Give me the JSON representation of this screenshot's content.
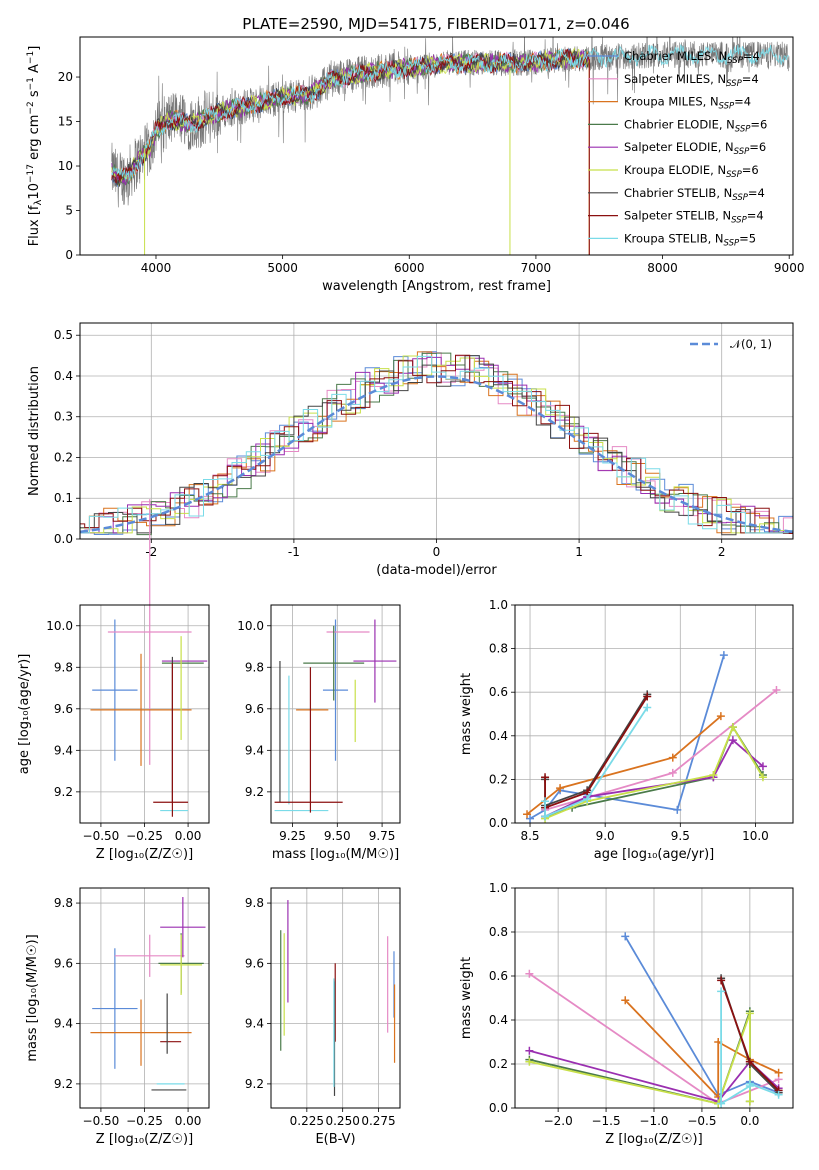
{
  "title": "PLATE=2590, MJD=54175, FIBERID=0171, z=0.046",
  "colors": {
    "Chabrier MILES": "#5b8bd8",
    "Salpeter MILES": "#e58ac5",
    "Kroupa MILES": "#d9731f",
    "Chabrier ELODIE": "#4a7a4a",
    "Salpeter ELODIE": "#9a2fb0",
    "Kroupa ELODIE": "#c8e04a",
    "Chabrier STELIB": "#444444",
    "Salpeter STELIB": "#8b1010",
    "Kroupa STELIB": "#7adbe8"
  },
  "legend": [
    {
      "name": "Chabrier MILES",
      "nssp": "4"
    },
    {
      "name": "Salpeter MILES",
      "nssp": "4"
    },
    {
      "name": "Kroupa MILES",
      "nssp": "4"
    },
    {
      "name": "Chabrier ELODIE",
      "nssp": "6"
    },
    {
      "name": "Salpeter ELODIE",
      "nssp": "6"
    },
    {
      "name": "Kroupa ELODIE",
      "nssp": "6"
    },
    {
      "name": "Chabrier STELIB",
      "nssp": "4"
    },
    {
      "name": "Salpeter STELIB",
      "nssp": "4"
    },
    {
      "name": "Kroupa STELIB",
      "nssp": "5"
    }
  ],
  "chart_data": [
    {
      "id": "spectrum",
      "type": "line",
      "xlabel": "wavelength [Angstrom, rest frame]",
      "ylabel_parts": [
        "Flux [f",
        "λ",
        "10",
        "−17",
        " erg cm",
        "−2",
        " s",
        "−1",
        " A",
        "−1",
        "]"
      ],
      "xlim": [
        3400,
        9030
      ],
      "ylim": [
        0,
        24.5
      ],
      "xticks": [
        4000,
        5000,
        6000,
        7000,
        8000,
        9000
      ],
      "yticks": [
        0,
        5,
        10,
        15,
        20
      ],
      "data_range": [
        3650,
        9000
      ],
      "continuum": [
        [
          3650,
          9.5
        ],
        [
          3700,
          8.5
        ],
        [
          3780,
          9.0
        ],
        [
          3850,
          10.5
        ],
        [
          3950,
          12.0
        ],
        [
          4000,
          14.0
        ],
        [
          4100,
          15.2
        ],
        [
          4300,
          14.8
        ],
        [
          4500,
          16.0
        ],
        [
          4800,
          17.0
        ],
        [
          5000,
          17.8
        ],
        [
          5200,
          18.0
        ],
        [
          5400,
          19.8
        ],
        [
          5700,
          20.6
        ],
        [
          6000,
          21.0
        ],
        [
          6300,
          21.5
        ],
        [
          6600,
          21.6
        ],
        [
          6900,
          21.6
        ],
        [
          7200,
          22.0
        ],
        [
          7500,
          22.2
        ],
        [
          8000,
          22.5
        ],
        [
          8500,
          22.5
        ],
        [
          9000,
          22.5
        ]
      ],
      "models_end": 7420
    },
    {
      "id": "residuals",
      "type": "histogram",
      "xlabel": "(data-model)/error",
      "ylabel": "Normed distribution",
      "xlim": [
        -2.5,
        2.5
      ],
      "ylim": [
        0,
        0.53
      ],
      "xticks": [
        -2,
        -1,
        0,
        1,
        2
      ],
      "yticks": [
        0.0,
        0.1,
        0.2,
        0.3,
        0.4,
        0.5
      ],
      "gauss_label": "𝒩(0, 1)",
      "gauss_color": "#5b8bd8",
      "bin_width": 0.1
    },
    {
      "id": "age-vs-Z",
      "type": "errorbar",
      "xlabel": "Z [log₁₀(Z/Z☉)]",
      "ylabel": "age  [log₁₀(age/yr)]",
      "xlim": [
        -0.62,
        0.12
      ],
      "ylim": [
        9.05,
        10.1
      ],
      "xticks": [
        -0.5,
        -0.25,
        0.0
      ],
      "xticklabels": [
        "−0.50",
        "−0.25",
        "0.00"
      ],
      "yticks": [
        9.2,
        9.4,
        9.6,
        9.8,
        10.0
      ],
      "points": [
        {
          "c": "Chabrier MILES",
          "x": -0.42,
          "xe": 0.13,
          "y": 9.69,
          "ye": 0.34
        },
        {
          "c": "Salpeter MILES",
          "x": -0.22,
          "xe": 0.24,
          "y": 9.97,
          "ye": 0.64
        },
        {
          "c": "Kroupa MILES",
          "x": -0.27,
          "xe": 0.29,
          "y": 9.595,
          "ye": 0.27
        },
        {
          "c": "Salpeter ELODIE",
          "x": -0.02,
          "xe": 0.13,
          "y": 9.83,
          "ye": 0.0
        },
        {
          "c": "Chabrier ELODIE",
          "x": -0.03,
          "xe": 0.12,
          "y": 9.82,
          "ye": 0.0
        },
        {
          "c": "Kroupa ELODIE",
          "x": -0.04,
          "xe": 0.0,
          "y": 9.7,
          "ye": 0.25
        },
        {
          "c": "Chabrier STELIB",
          "x": -0.09,
          "xe": 0.0,
          "y": 9.5,
          "ye": 0.35
        },
        {
          "c": "Salpeter STELIB",
          "x": -0.1,
          "xe": 0.1,
          "y": 9.15,
          "ye": 0.0
        },
        {
          "c": "Kroupa STELIB",
          "x": -0.08,
          "xe": 0.08,
          "y": 9.11,
          "ye": 0.0
        },
        {
          "c": "Salpeter STELIB",
          "x": -0.09,
          "xe": 0.0,
          "y": 9.45,
          "ye": 0.37
        }
      ]
    },
    {
      "id": "age-vs-mass",
      "type": "errorbar",
      "xlabel": "mass [log₁₀(M/M☉)]",
      "ylabel": "",
      "xlim": [
        9.13,
        9.85
      ],
      "ylim": [
        9.05,
        10.1
      ],
      "xticks": [
        9.25,
        9.5,
        9.75
      ],
      "xticklabels": [
        "9.25",
        "9.50",
        "9.75"
      ],
      "yticks": [
        9.2,
        9.4,
        9.6,
        9.8,
        10.0
      ],
      "points": [
        {
          "c": "Chabrier MILES",
          "x": 9.49,
          "xe": 0.07,
          "y": 9.69,
          "ye": 0.34
        },
        {
          "c": "Salpeter MILES",
          "x": 9.56,
          "xe": 0.12,
          "y": 9.97,
          "ye": 0.0
        },
        {
          "c": "Kroupa MILES",
          "x": 9.36,
          "xe": 0.09,
          "y": 9.595,
          "ye": 0.0
        },
        {
          "c": "Kroupa ELODIE",
          "x": 9.6,
          "xe": 0.0,
          "y": 9.59,
          "ye": 0.15
        },
        {
          "c": "Chabrier ELODIE",
          "x": 9.48,
          "xe": 0.17,
          "y": 9.82,
          "ye": 0.18
        },
        {
          "c": "Salpeter ELODIE",
          "x": 9.71,
          "xe": 0.12,
          "y": 9.83,
          "ye": 0.2
        },
        {
          "c": "Chabrier STELIB",
          "x": 9.18,
          "xe": 0.0,
          "y": 9.49,
          "ye": 0.34
        },
        {
          "c": "Kroupa STELIB",
          "x": 9.23,
          "xe": 0.0,
          "y": 9.45,
          "ye": 0.31
        },
        {
          "c": "Salpeter STELIB",
          "x": 9.34,
          "xe": 0.19,
          "y": 9.15,
          "ye": 0.0
        },
        {
          "c": "Kroupa STELIB",
          "x": 9.3,
          "xe": 0.15,
          "y": 9.11,
          "ye": 0.0
        },
        {
          "c": "Salpeter STELIB",
          "x": 9.35,
          "xe": 0.0,
          "y": 9.45,
          "ye": 0.35
        }
      ]
    },
    {
      "id": "massweight-vs-age",
      "type": "line",
      "xlabel": "age  [log₁₀(age/yr)]",
      "ylabel": "mass weight",
      "xlim": [
        8.4,
        10.25
      ],
      "ylim": [
        0,
        1.0
      ],
      "xticks": [
        8.5,
        9.0,
        9.5,
        10.0
      ],
      "xticklabels": [
        "8.5",
        "9.0",
        "9.5",
        "10.0"
      ],
      "yticks": [
        0.0,
        0.2,
        0.4,
        0.6,
        0.8,
        1.0
      ],
      "series": [
        {
          "c": "Chabrier MILES",
          "x": [
            8.5,
            8.6,
            8.7,
            9.48,
            9.79
          ],
          "y": [
            0.02,
            0.06,
            0.15,
            0.06,
            0.77
          ]
        },
        {
          "c": "Salpeter MILES",
          "x": [
            8.6,
            9.45,
            10.14
          ],
          "y": [
            0.06,
            0.23,
            0.61
          ]
        },
        {
          "c": "Kroupa MILES",
          "x": [
            8.48,
            8.7,
            9.45,
            9.77
          ],
          "y": [
            0.04,
            0.16,
            0.3,
            0.49
          ]
        },
        {
          "c": "Chabrier ELODIE",
          "x": [
            8.6,
            8.78,
            9.72,
            9.85,
            10.05
          ],
          "y": [
            0.03,
            0.07,
            0.21,
            0.44,
            0.22
          ]
        },
        {
          "c": "Salpeter ELODIE",
          "x": [
            8.6,
            8.88,
            9.72,
            9.85,
            10.05
          ],
          "y": [
            0.03,
            0.12,
            0.21,
            0.38,
            0.26
          ]
        },
        {
          "c": "Kroupa ELODIE",
          "x": [
            8.6,
            8.88,
            9.72,
            9.85,
            10.05
          ],
          "y": [
            0.02,
            0.1,
            0.22,
            0.44,
            0.21
          ]
        },
        {
          "c": "Chabrier STELIB",
          "x": [
            8.6,
            8.6,
            8.88,
            9.28
          ],
          "y": [
            0.2,
            0.08,
            0.15,
            0.59
          ]
        },
        {
          "c": "Salpeter STELIB",
          "x": [
            8.6,
            8.6,
            8.88,
            9.28
          ],
          "y": [
            0.21,
            0.07,
            0.14,
            0.58
          ]
        },
        {
          "c": "Kroupa STELIB",
          "x": [
            8.6,
            8.6,
            8.88,
            9.28
          ],
          "y": [
            0.1,
            0.03,
            0.11,
            0.53
          ]
        }
      ]
    },
    {
      "id": "mass-vs-Z",
      "type": "errorbar",
      "xlabel": "Z [log₁₀(Z/Z☉)]",
      "ylabel": "mass [log₁₀(M/M☉)]",
      "xlim": [
        -0.62,
        0.12
      ],
      "ylim": [
        9.12,
        9.85
      ],
      "xticks": [
        -0.5,
        -0.25,
        0.0
      ],
      "xticklabels": [
        "−0.50",
        "−0.25",
        "0.00"
      ],
      "yticks": [
        9.2,
        9.4,
        9.6,
        9.8
      ],
      "points": [
        {
          "c": "Chabrier MILES",
          "x": -0.42,
          "xe": 0.13,
          "y": 9.45,
          "ye": 0.2
        },
        {
          "c": "Salpeter MILES",
          "x": -0.22,
          "xe": 0.2,
          "y": 9.625,
          "ye": 0.07
        },
        {
          "c": "Kroupa MILES",
          "x": -0.27,
          "xe": 0.29,
          "y": 9.37,
          "ye": 0.11
        },
        {
          "c": "Salpeter ELODIE",
          "x": -0.03,
          "xe": 0.13,
          "y": 9.72,
          "ye": 0.1
        },
        {
          "c": "Chabrier ELODIE",
          "x": -0.04,
          "xe": 0.13,
          "y": 9.6,
          "ye": 0.1
        },
        {
          "c": "Kroupa ELODIE",
          "x": -0.04,
          "xe": 0.12,
          "y": 9.595,
          "ye": 0.1
        },
        {
          "c": "Salpeter STELIB",
          "x": -0.1,
          "xe": 0.06,
          "y": 9.34,
          "ye": 0.0
        },
        {
          "c": "Chabrier STELIB",
          "x": -0.11,
          "xe": 0.1,
          "y": 9.18,
          "ye": 0.0
        },
        {
          "c": "Kroupa STELIB",
          "x": -0.1,
          "xe": 0.08,
          "y": 9.2,
          "ye": 0.0
        },
        {
          "c": "Chabrier STELIB",
          "x": -0.12,
          "xe": 0.0,
          "y": 9.4,
          "ye": 0.1
        }
      ]
    },
    {
      "id": "mass-vs-EBV",
      "type": "errorbar",
      "xlabel": "E(B-V)",
      "ylabel": "",
      "xlim": [
        0.2,
        0.29
      ],
      "ylim": [
        9.12,
        9.85
      ],
      "xticks": [
        0.225,
        0.25,
        0.275
      ],
      "xticklabels": [
        "0.225",
        "0.250",
        "0.275"
      ],
      "yticks": [
        9.2,
        9.4,
        9.6,
        9.8
      ],
      "points": [
        {
          "c": "Chabrier ELODIE",
          "x": 0.2068,
          "xe": 0.0,
          "y": 9.51,
          "ye": 0.2
        },
        {
          "c": "Kroupa ELODIE",
          "x": 0.2092,
          "xe": 0.0,
          "y": 9.53,
          "ye": 0.17
        },
        {
          "c": "Salpeter ELODIE",
          "x": 0.2118,
          "xe": 0.0,
          "y": 9.64,
          "ye": 0.17
        },
        {
          "c": "Salpeter STELIB",
          "x": 0.2448,
          "xe": 0.0,
          "y": 9.47,
          "ye": 0.13
        },
        {
          "c": "Chabrier STELIB",
          "x": 0.2443,
          "xe": 0.0,
          "y": 9.35,
          "ye": 0.19
        },
        {
          "c": "Kroupa STELIB",
          "x": 0.2439,
          "xe": 0.0,
          "y": 9.37,
          "ye": 0.18
        },
        {
          "c": "Salpeter MILES",
          "x": 0.2814,
          "xe": 0.0,
          "y": 9.53,
          "ye": 0.16
        },
        {
          "c": "Chabrier MILES",
          "x": 0.2858,
          "xe": 0.0,
          "y": 9.53,
          "ye": 0.11
        },
        {
          "c": "Kroupa MILES",
          "x": 0.2862,
          "xe": 0.0,
          "y": 9.4,
          "ye": 0.13
        }
      ]
    },
    {
      "id": "massweight-vs-Z",
      "type": "line",
      "xlabel": "Z [log₁₀(Z/Z☉)]",
      "ylabel": "mass weight",
      "xlim": [
        -2.45,
        0.45
      ],
      "ylim": [
        0,
        1.0
      ],
      "xticks": [
        -2.0,
        -1.5,
        -1.0,
        -0.5,
        0.0
      ],
      "xticklabels": [
        "−2.0",
        "−1.5",
        "−1.0",
        "−0.5",
        "0.0"
      ],
      "yticks": [
        0.0,
        0.2,
        0.4,
        0.6,
        0.8,
        1.0
      ],
      "series": [
        {
          "c": "Chabrier MILES",
          "x": [
            -1.3,
            -0.33,
            0.0,
            0.3
          ],
          "y": [
            0.78,
            0.06,
            0.12,
            0.07
          ]
        },
        {
          "c": "Salpeter MILES",
          "x": [
            -2.3,
            -0.33,
            0.3
          ],
          "y": [
            0.61,
            0.02,
            0.13
          ]
        },
        {
          "c": "Kroupa MILES",
          "x": [
            -1.3,
            -0.33,
            -0.33,
            0.0,
            0.3
          ],
          "y": [
            0.49,
            0.05,
            0.3,
            0.22,
            0.16
          ]
        },
        {
          "c": "Chabrier ELODIE",
          "x": [
            -2.3,
            -0.33,
            0.0,
            0.0
          ],
          "y": [
            0.22,
            0.02,
            0.44,
            0.03
          ]
        },
        {
          "c": "Salpeter ELODIE",
          "x": [
            -2.3,
            -0.33,
            0.0,
            0.3
          ],
          "y": [
            0.26,
            0.03,
            0.21,
            0.09
          ]
        },
        {
          "c": "Kroupa ELODIE",
          "x": [
            -2.3,
            -0.33,
            0.0,
            0.0
          ],
          "y": [
            0.21,
            0.02,
            0.43,
            0.03
          ]
        },
        {
          "c": "Chabrier STELIB",
          "x": [
            -0.3,
            0.0,
            0.3
          ],
          "y": [
            0.59,
            0.2,
            0.07
          ]
        },
        {
          "c": "Salpeter STELIB",
          "x": [
            -0.3,
            0.0,
            0.3
          ],
          "y": [
            0.58,
            0.21,
            0.08
          ]
        },
        {
          "c": "Kroupa STELIB",
          "x": [
            -0.3,
            -0.3,
            0.0,
            0.0,
            0.3
          ],
          "y": [
            0.53,
            0.02,
            0.1,
            0.11,
            0.06
          ]
        }
      ]
    }
  ]
}
